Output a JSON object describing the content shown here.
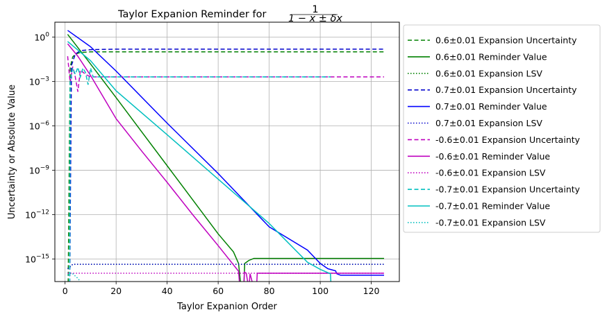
{
  "chart_data": {
    "type": "line",
    "title_text": "Taylor Expanion Reminder for ",
    "title_formula": {
      "numerator": "1",
      "denominator": "1 − x ± δx"
    },
    "xlabel": "Taylor Expanion Order",
    "ylabel": "Uncertainty or Absolute Value",
    "yscale": "log",
    "xlim": [
      -4,
      131
    ],
    "ylim": [
      3e-17,
      10
    ],
    "x_ticks": [
      0,
      20,
      40,
      60,
      80,
      100,
      120
    ],
    "y_ticks": [
      {
        "exp": 0,
        "value": 1,
        "label_base": "10",
        "label_exp": "0"
      },
      {
        "exp": -3,
        "value": 0.001,
        "label_base": "10",
        "label_exp": "−3"
      },
      {
        "exp": -6,
        "value": 1e-06,
        "label_base": "10",
        "label_exp": "−6"
      },
      {
        "exp": -9,
        "value": 1e-09,
        "label_base": "10",
        "label_exp": "−9"
      },
      {
        "exp": -12,
        "value": 1e-12,
        "label_base": "10",
        "label_exp": "−12"
      },
      {
        "exp": -15,
        "value": 1e-15,
        "label_base": "10",
        "label_exp": "−15"
      }
    ],
    "grid": true,
    "legend_position": "outside-right",
    "series": [
      {
        "name": "0.6±0.01 Expansion Uncertainty",
        "color": "#008000",
        "style": "dashed",
        "points": [
          [
            1,
            1e-17
          ],
          [
            1.2,
            1e-17
          ],
          [
            2,
            0.009
          ],
          [
            3,
            0.045
          ],
          [
            4,
            0.07
          ],
          [
            6,
            0.09
          ],
          [
            10,
            0.1
          ],
          [
            125,
            0.1
          ]
        ]
      },
      {
        "name": "0.6±0.01 Reminder Value",
        "color": "#008000",
        "style": "solid",
        "points": [
          [
            1,
            1.5
          ],
          [
            10,
            0.015
          ],
          [
            20,
            8e-05
          ],
          [
            30,
            4e-07
          ],
          [
            40,
            2e-09
          ],
          [
            50,
            1e-11
          ],
          [
            60,
            5e-14
          ],
          [
            66,
            3e-15
          ],
          [
            68,
            5e-16
          ],
          [
            69,
            1e-17
          ],
          [
            70,
            1e-17
          ],
          [
            70.4,
            5e-16
          ],
          [
            72,
            8e-16
          ],
          [
            74,
            1.1e-15
          ],
          [
            125,
            1.1e-15
          ]
        ]
      },
      {
        "name": "0.6±0.01 Expansion LSV",
        "color": "#008000",
        "style": "dotted",
        "points": [
          [
            1,
            2.2e-16
          ],
          [
            2,
            3e-16
          ],
          [
            3,
            4.4e-16
          ],
          [
            125,
            4.4e-16
          ]
        ]
      },
      {
        "name": "0.7±0.01 Expansion Uncertainty",
        "color": "#0000cc",
        "style": "dashed",
        "points": [
          [
            1.5,
            1e-17
          ],
          [
            1.8,
            1e-17
          ],
          [
            2.5,
            0.012
          ],
          [
            4,
            0.07
          ],
          [
            6,
            0.12
          ],
          [
            10,
            0.14
          ],
          [
            20,
            0.15
          ],
          [
            125,
            0.15
          ]
        ]
      },
      {
        "name": "0.7±0.01 Reminder Value",
        "color": "#0000ff",
        "style": "solid",
        "points": [
          [
            1,
            2.8
          ],
          [
            10,
            0.22
          ],
          [
            20,
            0.005
          ],
          [
            40,
            1.5e-06
          ],
          [
            60,
            6e-10
          ],
          [
            80,
            1.5e-13
          ],
          [
            95,
            4e-15
          ],
          [
            100,
            5e-16
          ],
          [
            103,
            2.2e-16
          ],
          [
            106,
            1.6e-16
          ],
          [
            106.5,
            1e-16
          ],
          [
            108,
            8e-17
          ],
          [
            125,
            8e-17
          ]
        ]
      },
      {
        "name": "0.7±0.01 Expansion LSV",
        "color": "#0000cc",
        "style": "dotted",
        "points": [
          [
            1,
            2.2e-16
          ],
          [
            2,
            3e-16
          ],
          [
            3,
            4.4e-16
          ],
          [
            125,
            4.4e-16
          ]
        ]
      },
      {
        "name": "-0.6±0.01 Expansion Uncertainty",
        "color": "#bf00bf",
        "style": "dashed",
        "points": [
          [
            1,
            0.05
          ],
          [
            2,
            0.0008
          ],
          [
            3,
            0.01
          ],
          [
            4,
            0.002
          ],
          [
            5,
            0.0002
          ],
          [
            6,
            0.006
          ],
          [
            8,
            0.003
          ],
          [
            10,
            0.002
          ],
          [
            125,
            0.002
          ]
        ]
      },
      {
        "name": "-0.6±0.01 Reminder Value",
        "color": "#bf00bf",
        "style": "solid",
        "points": [
          [
            1,
            0.35
          ],
          [
            5,
            0.05
          ],
          [
            10,
            0.0025
          ],
          [
            20,
            3e-06
          ],
          [
            30,
            2e-08
          ],
          [
            40,
            1.5e-10
          ],
          [
            50,
            1e-12
          ],
          [
            60,
            8e-15
          ],
          [
            68,
            1.5e-16
          ],
          [
            68.5,
            1e-17
          ],
          [
            70,
            1e-17
          ],
          [
            70.3,
            1.3e-16
          ],
          [
            71,
            1.1e-16
          ],
          [
            72,
            1e-17
          ],
          [
            72.5,
            1e-16
          ],
          [
            74,
            1e-17
          ],
          [
            75,
            1e-17
          ],
          [
            75.3,
            1.1e-16
          ],
          [
            125,
            1.1e-16
          ]
        ]
      },
      {
        "name": "-0.6±0.01 Expansion LSV",
        "color": "#bf00bf",
        "style": "dotted",
        "points": [
          [
            1,
            1.1e-16
          ],
          [
            125,
            1.1e-16
          ]
        ]
      },
      {
        "name": "-0.7±0.01 Expansion Uncertainty",
        "color": "#00bfbf",
        "style": "dashed",
        "points": [
          [
            1.5,
            1e-17
          ],
          [
            1.8,
            1e-17
          ],
          [
            2,
            0.001
          ],
          [
            3,
            0.008
          ],
          [
            4,
            0.003
          ],
          [
            5,
            0.009
          ],
          [
            6,
            0.002
          ],
          [
            7,
            0.008
          ],
          [
            8,
            0.004
          ],
          [
            9,
            0.0006
          ],
          [
            10,
            0.008
          ],
          [
            11,
            0.002
          ],
          [
            20,
            0.002
          ],
          [
            104,
            0.002
          ]
        ]
      },
      {
        "name": "-0.7±0.01 Reminder Value",
        "color": "#00bfbf",
        "style": "solid",
        "points": [
          [
            1,
            0.5
          ],
          [
            10,
            0.025
          ],
          [
            20,
            0.00023
          ],
          [
            40,
            2.5e-07
          ],
          [
            60,
            2.5e-10
          ],
          [
            80,
            2.5e-13
          ],
          [
            95,
            6e-16
          ],
          [
            100,
            2e-16
          ],
          [
            104,
            1e-16
          ],
          [
            104.3,
            1e-17
          ],
          [
            105,
            1e-17
          ]
        ]
      },
      {
        "name": "-0.7±0.01 Expansion LSV",
        "color": "#00bfbf",
        "style": "dotted",
        "points": [
          [
            1,
            8e-17
          ],
          [
            2,
            1.1e-16
          ],
          [
            3,
            1e-16
          ],
          [
            4,
            7e-17
          ],
          [
            5,
            5e-17
          ],
          [
            6,
            3e-17
          ]
        ]
      }
    ]
  }
}
